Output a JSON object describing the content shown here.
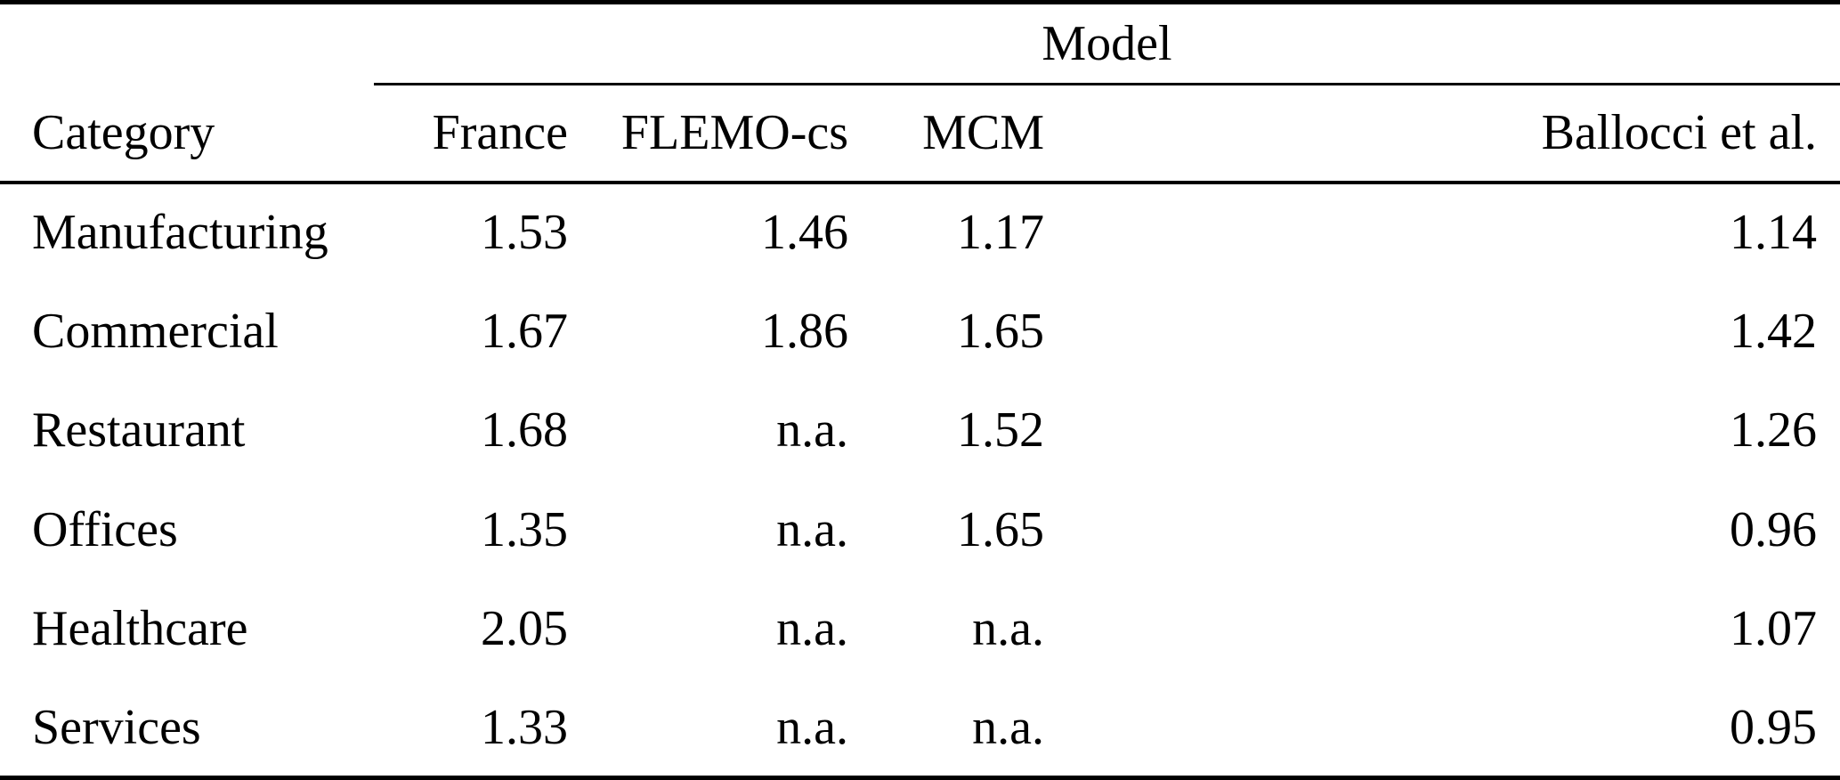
{
  "chart_data": {
    "type": "table",
    "group_header": "Model",
    "group_header_spans": [
      "France",
      "FLEMO-cs",
      "MCM",
      "Ballocci et al."
    ],
    "columns": [
      "Category",
      "France",
      "FLEMO-cs",
      "MCM",
      "Ballocci et al."
    ],
    "rows": [
      [
        "Manufacturing",
        "1.53",
        "1.46",
        "1.17",
        "1.14"
      ],
      [
        "Commercial",
        "1.67",
        "1.86",
        "1.65",
        "1.42"
      ],
      [
        "Restaurant",
        "1.68",
        "n.a.",
        "1.52",
        "1.26"
      ],
      [
        "Offices",
        "1.35",
        "n.a.",
        "1.65",
        "0.96"
      ],
      [
        "Healthcare",
        "2.05",
        "n.a.",
        "n.a.",
        "1.07"
      ],
      [
        "Services",
        "1.33",
        "n.a.",
        "n.a.",
        "0.95"
      ]
    ],
    "missing_value_marker": "n.a."
  },
  "colors": {
    "text": "#000000",
    "background": "#ffffff",
    "rule": "#000000"
  }
}
